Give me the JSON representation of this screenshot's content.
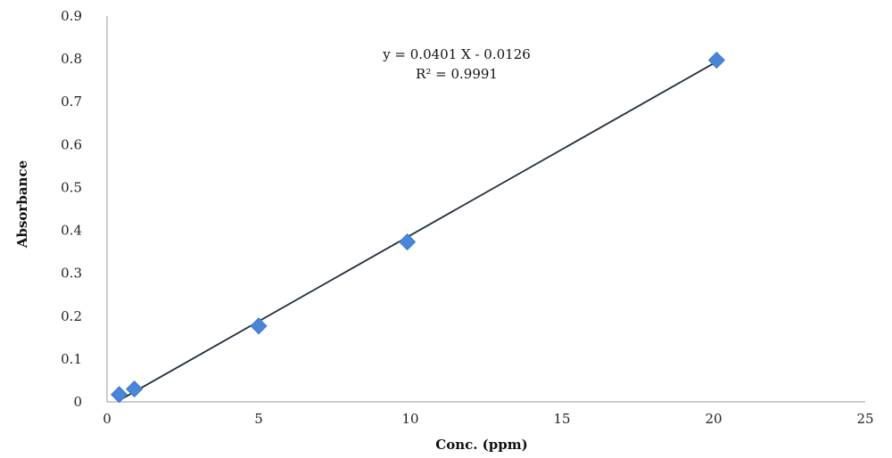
{
  "chart_data": {
    "type": "scatter",
    "xlabel": "Conc. (ppm)",
    "ylabel": "Absorbance",
    "xlim": [
      0,
      25
    ],
    "ylim": [
      0,
      0.9
    ],
    "xticks": [
      "0",
      "5",
      "10",
      "15",
      "20",
      "25"
    ],
    "yticks": [
      "0",
      "0.1",
      "0.2",
      "0.3",
      "0.4",
      "0.5",
      "0.6",
      "0.7",
      "0.8",
      "0.9"
    ],
    "grid": false,
    "series": [
      {
        "x": [
          0.4,
          0.9,
          5,
          9.9,
          20.1
        ],
        "y": [
          0.017,
          0.03,
          0.177,
          0.373,
          0.797
        ],
        "marker": "diamond",
        "color": "#4a86d8"
      }
    ],
    "trendline": {
      "slope": 0.0401,
      "intercept": -0.0126,
      "x_range": [
        0.5,
        20
      ],
      "color": "#1f2d3a"
    },
    "annotations": {
      "equation": "y = 0.0401 X - 0.0126",
      "r_squared": "R² = 0.9991"
    }
  }
}
